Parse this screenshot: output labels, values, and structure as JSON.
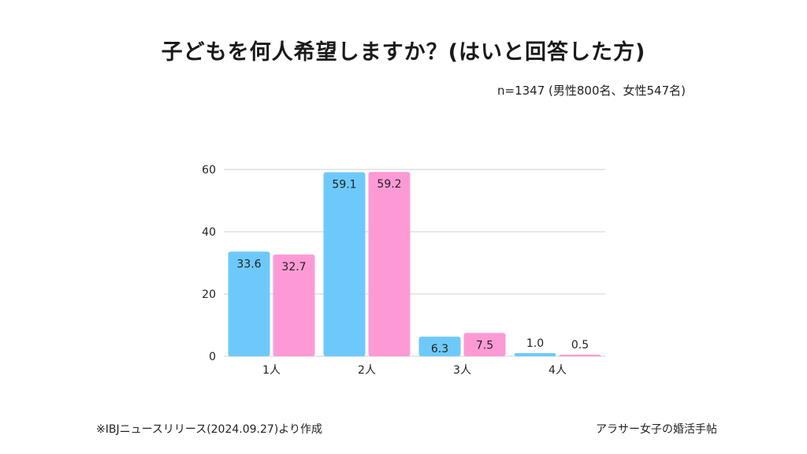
{
  "header": {
    "title": "子どもを何人希望しますか？(はいと回答した方)",
    "sample_note": "n=1347 (男性800名、女性547名)"
  },
  "footer": {
    "source": "※IBJニュースリリース(2024.09.27)より作成",
    "brand": "アラサー女子の婚活手帖"
  },
  "colors": {
    "series_1": "#6ec9fb",
    "series_2": "#fd9ad6",
    "grid": "#d0d0d0",
    "text": "#222222"
  },
  "chart_data": {
    "type": "bar",
    "categories": [
      "1人",
      "2人",
      "3人",
      "4人"
    ],
    "series": [
      {
        "values": [
          33.6,
          59.1,
          6.3,
          1.0
        ],
        "labels": [
          "33.6",
          "59.1",
          "6.3",
          "1.0"
        ]
      },
      {
        "values": [
          32.7,
          59.2,
          7.5,
          0.5
        ],
        "labels": [
          "32.7",
          "59.2",
          "7.5",
          "0.5"
        ]
      }
    ],
    "yticks": [
      0,
      20,
      40,
      60
    ],
    "ylim": [
      0,
      60
    ],
    "grid": true,
    "legend": "none"
  }
}
